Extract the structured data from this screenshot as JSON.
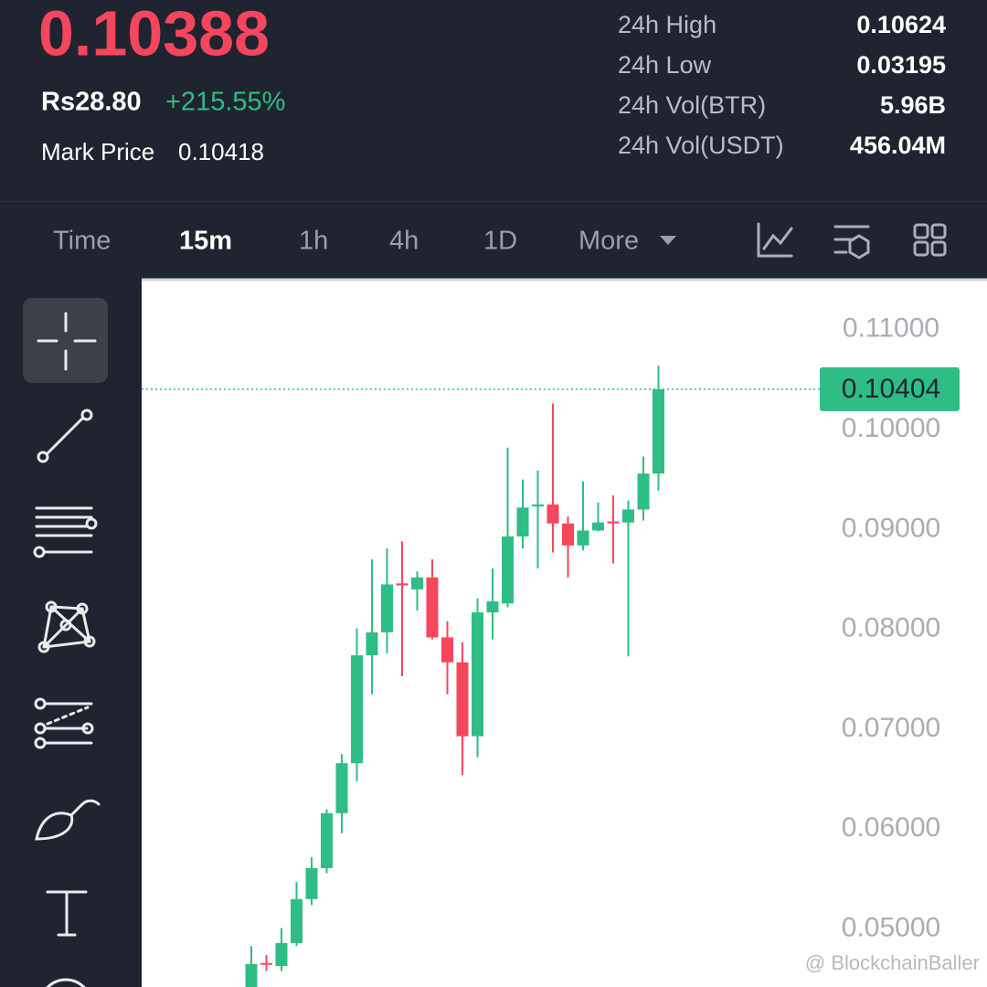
{
  "header": {
    "price": "0.10388",
    "fiat_price": "Rs28.80",
    "change": "+215.55%",
    "mark_price_label": "Mark Price",
    "mark_price": "0.10418",
    "stats": [
      {
        "label": "24h High",
        "value": "0.10624"
      },
      {
        "label": "24h Low",
        "value": "0.03195"
      },
      {
        "label": "24h Vol(BTR)",
        "value": "5.96B"
      },
      {
        "label": "24h Vol(USDT)",
        "value": "456.04M"
      }
    ]
  },
  "tabs": [
    "Time",
    "15m",
    "1h",
    "4h",
    "1D",
    "More"
  ],
  "active_tab": "15m",
  "watermark": "@ BlockchainBaller",
  "chart_data": {
    "type": "candlestick",
    "open": [
      0.0442,
      0.0466,
      0.0463,
      0.0486,
      0.053,
      0.0561,
      0.0616,
      0.0666,
      0.0774,
      0.0797,
      0.0846,
      0.084,
      0.0852,
      0.0792,
      0.0767,
      0.0693,
      0.0817,
      0.0826,
      0.0893,
      0.0923,
      0.0925,
      0.0906,
      0.0884,
      0.0899,
      0.0908,
      0.0907,
      0.092,
      0.0956
    ],
    "high": [
      0.0483,
      0.0474,
      0.0501,
      0.0547,
      0.0572,
      0.062,
      0.0675,
      0.0801,
      0.087,
      0.0881,
      0.0888,
      0.0858,
      0.087,
      0.0808,
      0.0787,
      0.0831,
      0.0861,
      0.0982,
      0.095,
      0.0959,
      0.1026,
      0.0913,
      0.0948,
      0.0927,
      0.0934,
      0.0929,
      0.0973,
      0.1064
    ],
    "low": [
      0.044,
      0.0458,
      0.0458,
      0.0483,
      0.0524,
      0.0556,
      0.0596,
      0.0648,
      0.0735,
      0.0776,
      0.0753,
      0.0819,
      0.079,
      0.0735,
      0.0654,
      0.0672,
      0.079,
      0.0822,
      0.0881,
      0.0861,
      0.0877,
      0.0852,
      0.0879,
      0.0898,
      0.0866,
      0.0773,
      0.0909,
      0.0939
    ],
    "close": [
      0.0465,
      0.0465,
      0.0486,
      0.053,
      0.0561,
      0.0616,
      0.0666,
      0.0774,
      0.0797,
      0.0845,
      0.0844,
      0.0852,
      0.0792,
      0.0767,
      0.0693,
      0.0817,
      0.0828,
      0.0893,
      0.0922,
      0.0925,
      0.0906,
      0.0884,
      0.0899,
      0.0907,
      0.0907,
      0.092,
      0.0956,
      0.10404
    ],
    "up_color": "#2ebd85",
    "down_color": "#f6465d",
    "ylim": [
      0.0442,
      0.1151
    ],
    "yticks": [
      {
        "value": 0.11,
        "label": "0.11000"
      },
      {
        "value": 0.1,
        "label": "0.10000"
      },
      {
        "value": 0.09,
        "label": "0.09000"
      },
      {
        "value": 0.08,
        "label": "0.08000"
      },
      {
        "value": 0.07,
        "label": "0.07000"
      },
      {
        "value": 0.06,
        "label": "0.06000"
      },
      {
        "value": 0.05,
        "label": "0.05000"
      }
    ],
    "last_price": 0.10404
  }
}
